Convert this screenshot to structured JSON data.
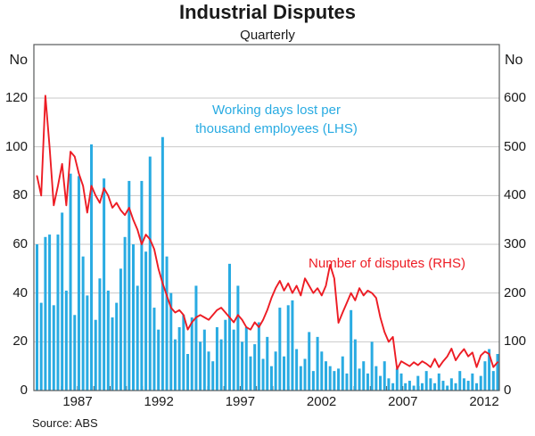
{
  "header": {
    "title": "Industrial Disputes",
    "subtitle": "Quarterly"
  },
  "axes": {
    "left": {
      "unit_label": "No",
      "ticks": [
        0,
        20,
        40,
        60,
        80,
        100,
        120
      ]
    },
    "right": {
      "unit_label": "No",
      "ticks": [
        0,
        100,
        200,
        300,
        400,
        500,
        600
      ]
    },
    "x": {
      "labeled_years": [
        1987,
        1992,
        1997,
        2002,
        2007,
        2012
      ],
      "first_minor_tick_year": 1985,
      "last_minor_tick_year": 2012,
      "minor_tick_interval_years": 1
    }
  },
  "annotations": {
    "bars_label_line1": "Working days lost per",
    "bars_label_line2": "thousand employees (LHS)",
    "line_label": "Number of disputes (RHS)"
  },
  "footer": {
    "source": "Source: ABS"
  },
  "colors": {
    "bars": "#29abe2",
    "line": "#ed1c24",
    "frame": "#58595b",
    "grid": "#c9c9c9",
    "text": "#1a1a1a"
  },
  "chart_data": {
    "type": "combo",
    "title": "Industrial Disputes",
    "subtitle": "Quarterly",
    "frequency": "quarterly",
    "x_start_quarter": "1984Q3",
    "x_end_quarter": "2012Q1",
    "x_tick_labels": [
      "1987",
      "1992",
      "1997",
      "2002",
      "2007",
      "2012"
    ],
    "left_axis_label": "No",
    "right_axis_label": "No",
    "left_ylim": [
      0,
      142
    ],
    "right_ylim": [
      0,
      710
    ],
    "grid": true,
    "legend_position": "in-plot text annotations",
    "series": [
      {
        "name": "Working days lost per thousand employees",
        "axis": "LHS",
        "type": "bar",
        "color": "#29abe2",
        "values": [
          60,
          36,
          63,
          64,
          35,
          64,
          73,
          41,
          89,
          31,
          88,
          55,
          39,
          101,
          29,
          46,
          87,
          41,
          30,
          36,
          50,
          63,
          86,
          60,
          43,
          86,
          57,
          96,
          34,
          25,
          104,
          55,
          40,
          21,
          26,
          31,
          15,
          30,
          43,
          20,
          25,
          16,
          12,
          26,
          21,
          29,
          52,
          25,
          43,
          20,
          26,
          14,
          19,
          28,
          13,
          22,
          10,
          16,
          34,
          14,
          35,
          37,
          17,
          10,
          13,
          24,
          8,
          22,
          16,
          12,
          10,
          8,
          9,
          14,
          7,
          33,
          21,
          9,
          12,
          7,
          20,
          10,
          6,
          12,
          5,
          3,
          9,
          7,
          3,
          4,
          2,
          6,
          3,
          8,
          5,
          3,
          7,
          4,
          2,
          5,
          3,
          8,
          5,
          4,
          7,
          3,
          6,
          12,
          17,
          8,
          15
        ]
      },
      {
        "name": "Number of disputes",
        "axis": "RHS",
        "type": "line",
        "color": "#ed1c24",
        "values": [
          440,
          400,
          605,
          500,
          380,
          420,
          465,
          380,
          490,
          480,
          445,
          420,
          365,
          420,
          400,
          385,
          415,
          400,
          375,
          385,
          370,
          360,
          375,
          350,
          330,
          300,
          320,
          310,
          290,
          250,
          220,
          195,
          170,
          160,
          165,
          155,
          125,
          140,
          150,
          155,
          150,
          145,
          155,
          165,
          170,
          160,
          150,
          140,
          155,
          145,
          130,
          125,
          140,
          130,
          145,
          165,
          190,
          210,
          225,
          205,
          220,
          200,
          215,
          195,
          230,
          215,
          200,
          210,
          195,
          215,
          258,
          230,
          139,
          160,
          180,
          200,
          185,
          210,
          195,
          205,
          200,
          190,
          150,
          120,
          100,
          110,
          44,
          60,
          55,
          50,
          58,
          52,
          60,
          55,
          48,
          65,
          48,
          60,
          70,
          86,
          62,
          75,
          85,
          70,
          78,
          48,
          72,
          80,
          75,
          48,
          58
        ]
      }
    ]
  }
}
